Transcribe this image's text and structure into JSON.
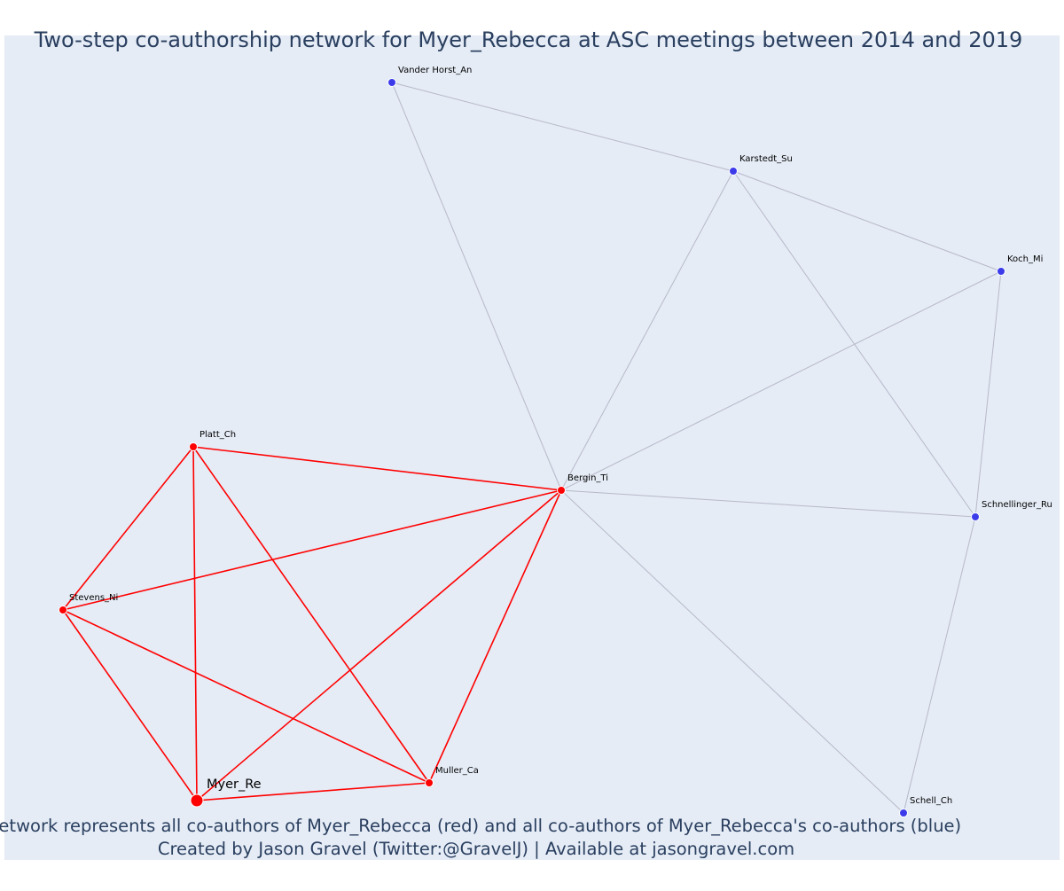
{
  "title": "Two-step co-authorship network for Myer_Rebecca at ASC meetings between 2014 and 2019",
  "footer": {
    "line1": "Network represents all co-authors of Myer_Rebecca (red) and all co-authors of Myer_Rebecca's co-authors (blue)",
    "line2": "Created by Jason Gravel (Twitter:@GravelJ) | Available at jasongravel.com"
  },
  "colors": {
    "plot_background": "#e5ecf6",
    "first_degree": "#ff0000",
    "second_degree": "#3b3bea",
    "second_degree_edge": "#b8b8c8",
    "node_border": "#ffffff"
  },
  "nodes": [
    {
      "id": "Myer_Re",
      "label": "Myer_Re",
      "group": "first_degree",
      "focal": true
    },
    {
      "id": "Platt_Ch",
      "label": "Platt_Ch",
      "group": "first_degree"
    },
    {
      "id": "Stevens_Ni",
      "label": "Stevens_Ni",
      "group": "first_degree"
    },
    {
      "id": "Muller_Ca",
      "label": "Muller_Ca",
      "group": "first_degree"
    },
    {
      "id": "Bergin_Ti",
      "label": "Bergin_Ti",
      "group": "first_degree"
    },
    {
      "id": "Vander Horst_An",
      "label": "Vander Horst_An",
      "group": "second_degree"
    },
    {
      "id": "Karstedt_Su",
      "label": "Karstedt_Su",
      "group": "second_degree"
    },
    {
      "id": "Koch_Mi",
      "label": "Koch_Mi",
      "group": "second_degree"
    },
    {
      "id": "Schnellinger_Ru",
      "label": "Schnellinger_Ru",
      "group": "second_degree"
    },
    {
      "id": "Schell_Ch",
      "label": "Schell_Ch",
      "group": "second_degree"
    }
  ],
  "edges": [
    {
      "source": "Platt_Ch",
      "target": "Bergin_Ti",
      "group": "first_degree"
    },
    {
      "source": "Platt_Ch",
      "target": "Stevens_Ni",
      "group": "first_degree"
    },
    {
      "source": "Platt_Ch",
      "target": "Myer_Re",
      "group": "first_degree"
    },
    {
      "source": "Platt_Ch",
      "target": "Muller_Ca",
      "group": "first_degree"
    },
    {
      "source": "Stevens_Ni",
      "target": "Bergin_Ti",
      "group": "first_degree"
    },
    {
      "source": "Stevens_Ni",
      "target": "Myer_Re",
      "group": "first_degree"
    },
    {
      "source": "Stevens_Ni",
      "target": "Muller_Ca",
      "group": "first_degree"
    },
    {
      "source": "Myer_Re",
      "target": "Bergin_Ti",
      "group": "first_degree"
    },
    {
      "source": "Myer_Re",
      "target": "Muller_Ca",
      "group": "first_degree"
    },
    {
      "source": "Muller_Ca",
      "target": "Bergin_Ti",
      "group": "first_degree"
    },
    {
      "source": "Vander Horst_An",
      "target": "Karstedt_Su",
      "group": "second_degree"
    },
    {
      "source": "Vander Horst_An",
      "target": "Bergin_Ti",
      "group": "second_degree"
    },
    {
      "source": "Karstedt_Su",
      "target": "Koch_Mi",
      "group": "second_degree"
    },
    {
      "source": "Karstedt_Su",
      "target": "Bergin_Ti",
      "group": "second_degree"
    },
    {
      "source": "Karstedt_Su",
      "target": "Schnellinger_Ru",
      "group": "second_degree"
    },
    {
      "source": "Koch_Mi",
      "target": "Bergin_Ti",
      "group": "second_degree"
    },
    {
      "source": "Koch_Mi",
      "target": "Schnellinger_Ru",
      "group": "second_degree"
    },
    {
      "source": "Bergin_Ti",
      "target": "Schnellinger_Ru",
      "group": "second_degree"
    },
    {
      "source": "Bergin_Ti",
      "target": "Schell_Ch",
      "group": "second_degree"
    },
    {
      "source": "Schnellinger_Ru",
      "target": "Schell_Ch",
      "group": "second_degree"
    }
  ]
}
